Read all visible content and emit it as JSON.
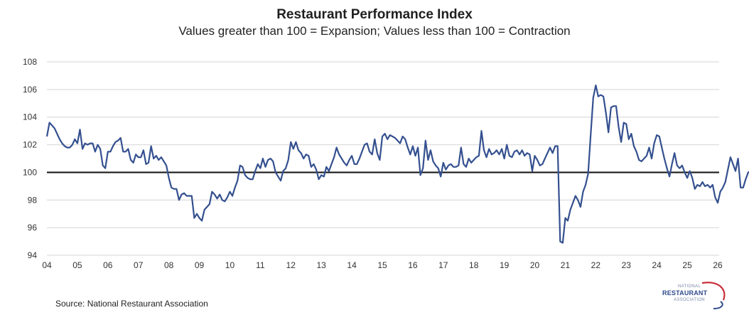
{
  "chart_data": {
    "type": "line",
    "title": "Restaurant Performance Index",
    "subtitle": "Values greater than 100 = Expansion; Values less than 100 = Contraction",
    "xlabel": "",
    "ylabel": "",
    "xlim": [
      2004,
      2026
    ],
    "ylim": [
      94,
      108
    ],
    "y_ticks": [
      94,
      96,
      98,
      100,
      102,
      104,
      106,
      108
    ],
    "y_tick_labels": [
      "94",
      "96",
      "98",
      "100",
      "102",
      "104",
      "106",
      "108"
    ],
    "x_ticks": [
      2004,
      2005,
      2006,
      2007,
      2008,
      2009,
      2010,
      2011,
      2012,
      2013,
      2014,
      2015,
      2016,
      2017,
      2018,
      2019,
      2020,
      2021,
      2022,
      2023,
      2024,
      2025,
      2026
    ],
    "x_tick_labels": [
      "04",
      "05",
      "06",
      "07",
      "08",
      "09",
      "10",
      "11",
      "12",
      "13",
      "14",
      "15",
      "16",
      "17",
      "18",
      "19",
      "20",
      "21",
      "22",
      "23",
      "24",
      "25",
      "26"
    ],
    "grid": true,
    "reference_line": {
      "value": 100,
      "color": "#1a1a1a"
    },
    "series": [
      {
        "name": "Restaurant Performance Index",
        "color": "#34508f",
        "start": 2004.0,
        "step_months": 1,
        "values": [
          102.6,
          103.6,
          103.4,
          103.2,
          102.8,
          102.4,
          102.1,
          101.9,
          101.8,
          101.8,
          102.0,
          102.4,
          102.1,
          103.1,
          101.7,
          102.1,
          102.0,
          102.1,
          102.1,
          101.5,
          102.0,
          101.7,
          100.5,
          100.3,
          101.5,
          101.5,
          101.9,
          102.2,
          102.3,
          102.5,
          101.5,
          101.5,
          101.7,
          100.9,
          100.7,
          101.3,
          101.1,
          101.1,
          101.6,
          100.6,
          100.7,
          101.9,
          101.0,
          101.2,
          100.9,
          101.1,
          100.8,
          100.5,
          99.6,
          98.9,
          98.8,
          98.8,
          98.0,
          98.4,
          98.5,
          98.3,
          98.3,
          98.3,
          96.7,
          97.0,
          96.7,
          96.5,
          97.3,
          97.5,
          97.7,
          98.6,
          98.4,
          98.1,
          98.4,
          98.0,
          97.9,
          98.2,
          98.6,
          98.3,
          98.9,
          99.4,
          100.5,
          100.4,
          99.8,
          99.6,
          99.5,
          99.5,
          100.1,
          100.6,
          100.3,
          101.0,
          100.4,
          100.9,
          101.0,
          100.8,
          100.0,
          99.7,
          99.4,
          100.1,
          100.3,
          100.9,
          102.2,
          101.7,
          102.2,
          101.6,
          101.4,
          101.0,
          101.3,
          101.2,
          100.4,
          100.6,
          100.2,
          99.5,
          99.8,
          99.7,
          100.4,
          100.1,
          100.6,
          101.1,
          101.8,
          101.3,
          101.0,
          100.7,
          100.5,
          100.9,
          101.2,
          100.6,
          100.6,
          101.0,
          101.5,
          102.0,
          102.1,
          101.5,
          101.3,
          102.4,
          101.4,
          100.9,
          102.6,
          102.8,
          102.4,
          102.7,
          102.6,
          102.5,
          102.3,
          102.1,
          102.6,
          102.4,
          101.8,
          101.3,
          101.9,
          101.2,
          101.8,
          99.8,
          100.3,
          102.3,
          100.9,
          101.6,
          100.8,
          100.5,
          100.3,
          99.7,
          100.7,
          100.2,
          100.5,
          100.6,
          100.4,
          100.4,
          100.5,
          101.8,
          100.6,
          100.4,
          101.0,
          100.7,
          100.9,
          101.1,
          101.2,
          103.0,
          101.6,
          101.1,
          101.7,
          101.3,
          101.4,
          101.6,
          101.3,
          101.7,
          101.0,
          102.0,
          101.2,
          101.1,
          101.5,
          101.6,
          101.3,
          101.6,
          101.2,
          101.4,
          101.3,
          100.1,
          101.2,
          100.9,
          100.5,
          100.6,
          101.0,
          101.4,
          101.8,
          101.4,
          101.9,
          101.9,
          95.0,
          94.9,
          96.7,
          96.5,
          97.3,
          97.8,
          98.3,
          98.0,
          97.5,
          98.6,
          99.1,
          99.9,
          102.7,
          105.4,
          106.3,
          105.5,
          105.6,
          105.5,
          104.3,
          102.9,
          104.7,
          104.8,
          104.8,
          103.3,
          102.2,
          103.6,
          103.5,
          102.4,
          102.8,
          101.9,
          101.5,
          100.9,
          100.8,
          101.0,
          101.2,
          101.8,
          101.0,
          102.1,
          102.7,
          102.6,
          101.8,
          101.0,
          100.3,
          99.7,
          100.6,
          101.4,
          100.5,
          100.3,
          100.5,
          100.0,
          99.6,
          100.1,
          99.6,
          98.8,
          99.1,
          99.0,
          99.3,
          99.0,
          99.1,
          98.9,
          99.1,
          98.2,
          97.8,
          98.6,
          98.9,
          99.3,
          100.2,
          101.1,
          100.6,
          100.1,
          101.0,
          98.9,
          98.9,
          99.5,
          100.0,
          100.1,
          100.0,
          99.9,
          99.7,
          99.8,
          100.0,
          99.4,
          99.6,
          100.0,
          99.9,
          99.3,
          100.0
        ]
      }
    ]
  },
  "footer": {
    "source": "Source: National Restaurant Association"
  },
  "logo": {
    "line1": "NATIONAL",
    "line2": "RESTAURANT",
    "line3": "ASSOCIATION"
  }
}
